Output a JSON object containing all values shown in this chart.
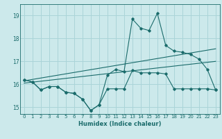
{
  "xlabel": "Humidex (Indice chaleur)",
  "ylabel": "",
  "bg_color": "#cce9eb",
  "grid_color": "#aad4d8",
  "line_color": "#1a6b6b",
  "xlim": [
    -0.5,
    23.5
  ],
  "ylim": [
    14.7,
    19.5
  ],
  "yticks": [
    15,
    16,
    17,
    18,
    19
  ],
  "xticks": [
    0,
    1,
    2,
    3,
    4,
    5,
    6,
    7,
    8,
    9,
    10,
    11,
    12,
    13,
    14,
    15,
    16,
    17,
    18,
    19,
    20,
    21,
    22,
    23
  ],
  "curve1_x": [
    0,
    1,
    2,
    3,
    4,
    5,
    6,
    7,
    8,
    9,
    10,
    11,
    12,
    13,
    14,
    15,
    16,
    17,
    18,
    19,
    20,
    21,
    22,
    23
  ],
  "curve1_y": [
    16.2,
    16.1,
    15.75,
    15.9,
    15.9,
    15.65,
    15.6,
    15.35,
    14.85,
    15.1,
    15.8,
    15.8,
    15.8,
    16.6,
    16.5,
    16.5,
    16.5,
    16.45,
    15.8,
    15.8,
    15.8,
    15.8,
    15.8,
    15.75
  ],
  "curve2_x": [
    0,
    1,
    2,
    3,
    4,
    5,
    6,
    7,
    8,
    9,
    10,
    11,
    12,
    13,
    14,
    15,
    16,
    17,
    18,
    19,
    20,
    21,
    22,
    23
  ],
  "curve2_y": [
    16.2,
    16.1,
    15.75,
    15.9,
    15.9,
    15.65,
    15.6,
    15.35,
    14.85,
    15.1,
    16.4,
    16.65,
    16.55,
    18.85,
    18.45,
    18.35,
    19.1,
    17.7,
    17.45,
    17.4,
    17.3,
    17.1,
    16.65,
    15.75
  ],
  "line1_x": [
    0,
    23
  ],
  "line1_y": [
    16.05,
    17.0
  ],
  "line2_x": [
    0,
    23
  ],
  "line2_y": [
    16.15,
    17.55
  ]
}
